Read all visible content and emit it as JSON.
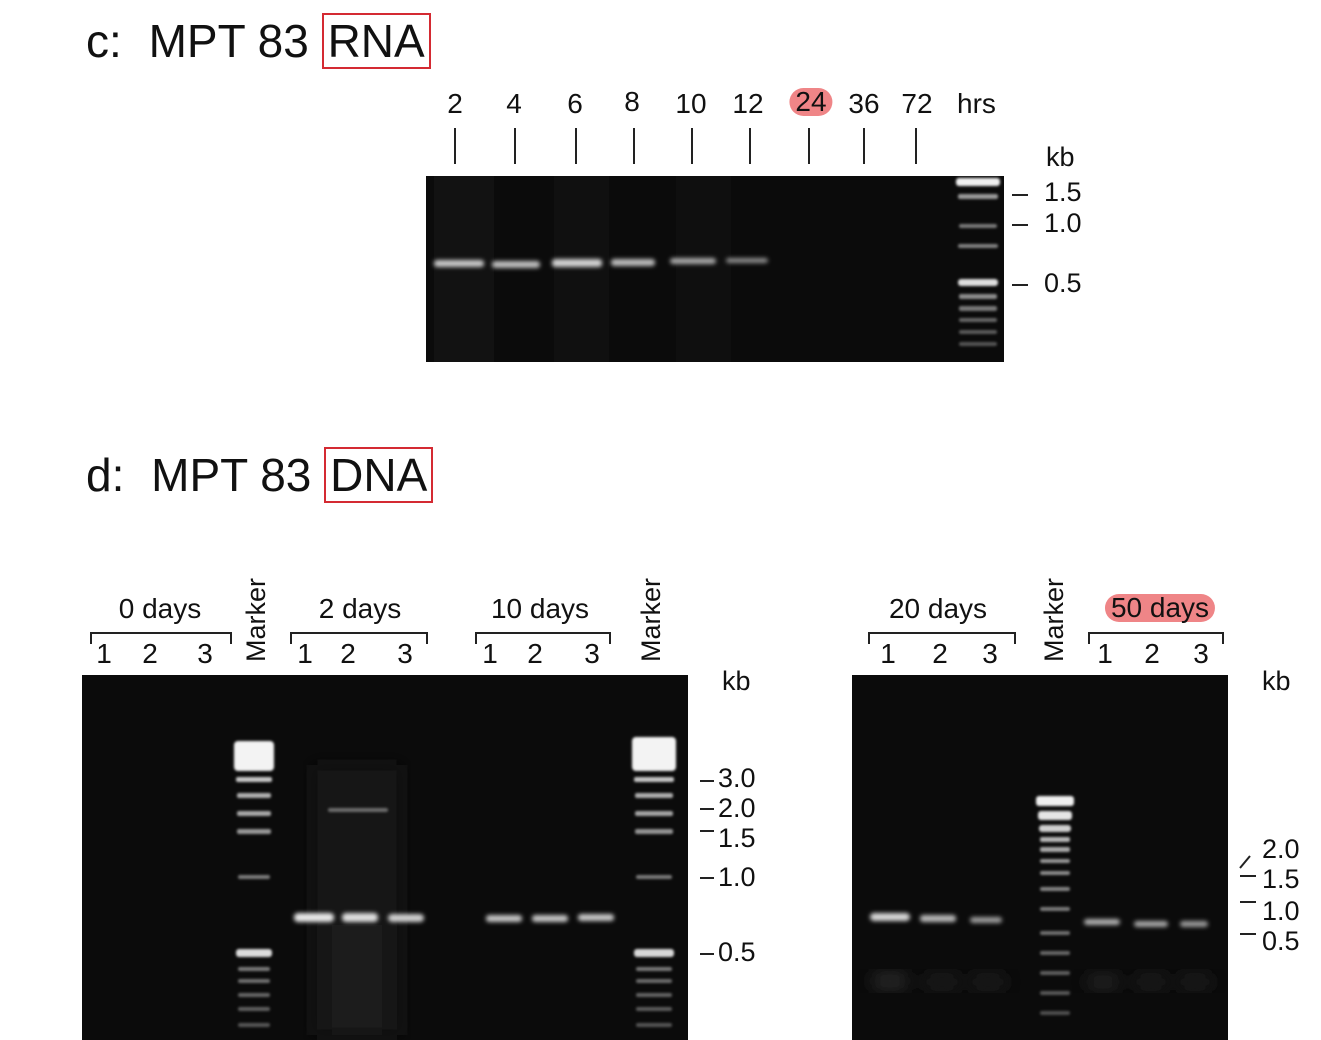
{
  "panel_c": {
    "prefix": "c:",
    "title_main": "MPT 83",
    "title_boxed": "RNA",
    "time_labels": [
      "2",
      "4",
      "6",
      "8",
      "10",
      "12",
      "24",
      "36",
      "72"
    ],
    "time_unit": "hrs",
    "highlighted_time": "24",
    "kb_unit": "kb",
    "kb_markers": [
      "1.5",
      "1.0",
      "0.5"
    ],
    "band_lanes": [
      "2",
      "4",
      "6",
      "8",
      "10",
      "12"
    ]
  },
  "panel_d": {
    "prefix": "d:",
    "title_main": "MPT 83",
    "title_boxed": "DNA",
    "left_gel": {
      "groups": [
        {
          "label": "0 days",
          "lanes": [
            "1",
            "2",
            "3"
          ]
        },
        {
          "label": "2 days",
          "lanes": [
            "1",
            "2",
            "3"
          ]
        },
        {
          "label": "10 days",
          "lanes": [
            "1",
            "2",
            "3"
          ]
        }
      ],
      "marker_label": "Marker",
      "kb_unit": "kb",
      "kb_markers": [
        "3.0",
        "2.0",
        "1.5",
        "1.0",
        "0.5"
      ]
    },
    "right_gel": {
      "groups": [
        {
          "label": "20 days",
          "lanes": [
            "1",
            "2",
            "3"
          ]
        },
        {
          "label": "50 days",
          "lanes": [
            "1",
            "2",
            "3"
          ]
        }
      ],
      "highlighted_group": "50 days",
      "marker_label": "Marker",
      "kb_unit": "kb",
      "kb_markers": [
        "2.0",
        "1.5",
        "1.0",
        "0.5"
      ]
    }
  },
  "colors": {
    "highlight_box": "#d42a32",
    "highlight_pill": "#ef8587",
    "gel_background": "#0b0b0b"
  }
}
